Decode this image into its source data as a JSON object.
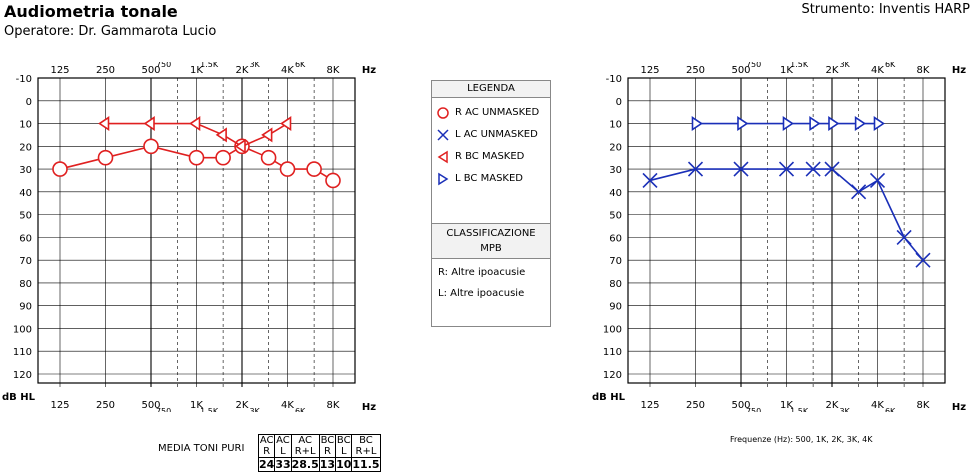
{
  "header": {
    "title": "Audiometria tonale",
    "operator": "Operatore: Dr. Gammarota Lucio",
    "instrument": "Strumento: Inventis HARP"
  },
  "legend": {
    "title": "LEGENDA",
    "items": [
      {
        "label": "R AC UNMASKED",
        "symbol": "circle-icon",
        "color": "#e02020"
      },
      {
        "label": "L AC UNMASKED",
        "symbol": "x-cross-icon",
        "color": "#1a2fb8"
      },
      {
        "label": "R BC MASKED",
        "symbol": "left-bracket-triangle-icon",
        "color": "#e02020"
      },
      {
        "label": "L BC MASKED",
        "symbol": "right-bracket-triangle-icon",
        "color": "#1a2fb8"
      }
    ],
    "classification_title_1": "CLASSIFICAZIONE",
    "classification_title_2": "MPB",
    "classification": [
      "R: Altre ipoacusie",
      "L: Altre ipoacusie"
    ]
  },
  "summary": {
    "label": "MEDIA TONI PURI",
    "headers": [
      "AC R",
      "AC L",
      "AC R+L",
      "BC R",
      "BC L",
      "BC R+L"
    ],
    "values": [
      "24",
      "33",
      "28.5",
      "13",
      "10",
      "11.5"
    ],
    "note": "Frequenze (Hz): 500, 1K, 2K, 3K, 4K"
  },
  "chart_data": [
    {
      "type": "line",
      "ear": "right",
      "color": "#e02020",
      "xlabel": "Hz",
      "ylabel": "dB HL",
      "ylim": [
        -10,
        120
      ],
      "y_ticks": [
        "-10",
        "0",
        "10",
        "20",
        "30",
        "40",
        "50",
        "60",
        "70",
        "80",
        "90",
        "100",
        "110",
        "120"
      ],
      "x_major": [
        "125",
        "250",
        "500",
        "1K",
        "2K",
        "4K",
        "8K"
      ],
      "x_minor": [
        "750",
        "1.5K",
        "3K",
        "6K"
      ],
      "series": [
        {
          "name": "R AC UNMASKED",
          "marker": "circle",
          "x": [
            125,
            250,
            500,
            1000,
            1500,
            2000,
            3000,
            4000,
            6000,
            8000
          ],
          "y": [
            30,
            25,
            20,
            25,
            25,
            20,
            25,
            30,
            30,
            35
          ]
        },
        {
          "name": "R BC MASKED",
          "marker": "bracket-left",
          "x": [
            250,
            500,
            1000,
            1500,
            2000,
            3000,
            4000
          ],
          "y": [
            10,
            10,
            10,
            15,
            20,
            15,
            10
          ]
        }
      ]
    },
    {
      "type": "line",
      "ear": "left",
      "color": "#1a2fb8",
      "xlabel": "Hz",
      "ylabel": "dB HL",
      "ylim": [
        -10,
        120
      ],
      "y_ticks": [
        "-10",
        "0",
        "10",
        "20",
        "30",
        "40",
        "50",
        "60",
        "70",
        "80",
        "90",
        "100",
        "110",
        "120"
      ],
      "x_major": [
        "125",
        "250",
        "500",
        "1K",
        "2K",
        "4K",
        "8K"
      ],
      "x_minor": [
        "750",
        "1.5K",
        "3K",
        "6K"
      ],
      "series": [
        {
          "name": "L AC UNMASKED",
          "marker": "x",
          "x": [
            125,
            250,
            500,
            1000,
            1500,
            2000,
            3000,
            4000,
            6000,
            8000
          ],
          "y": [
            35,
            30,
            30,
            30,
            30,
            30,
            40,
            35,
            60,
            70
          ]
        },
        {
          "name": "L BC MASKED",
          "marker": "bracket-right",
          "x": [
            250,
            500,
            1000,
            1500,
            2000,
            3000,
            4000
          ],
          "y": [
            10,
            10,
            10,
            10,
            10,
            10,
            10
          ]
        }
      ]
    }
  ]
}
